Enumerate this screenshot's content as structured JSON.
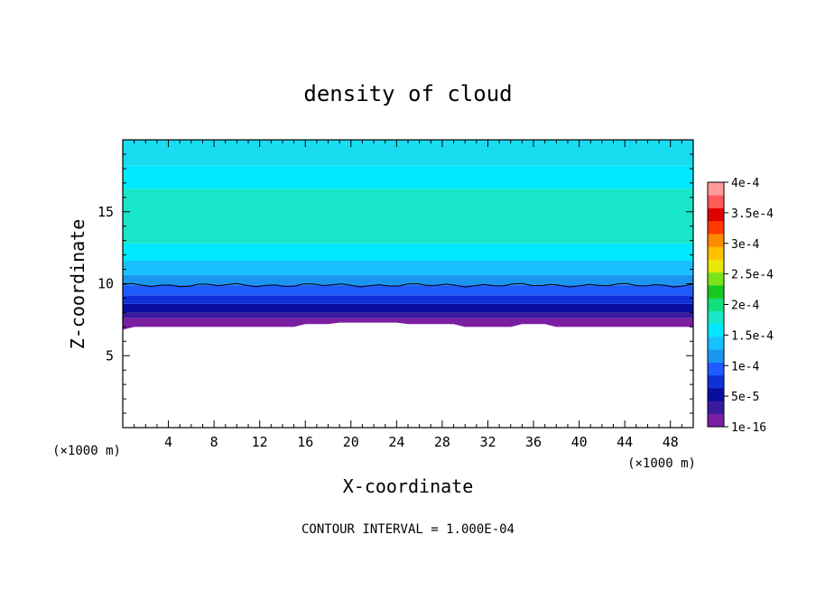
{
  "chart_data": {
    "type": "heatmap",
    "title": "density of cloud",
    "xlabel": "X-coordinate",
    "ylabel": "Z-coordinate",
    "x_unit": "(×1000 m)",
    "x_ticks": [
      4,
      8,
      12,
      16,
      20,
      24,
      28,
      32,
      36,
      40,
      44,
      48
    ],
    "y_ticks": [
      5,
      10,
      15
    ],
    "xlim": [
      0,
      50
    ],
    "ylim": [
      0,
      20
    ],
    "footer": "CONTOUR INTERVAL = 1.000E-04",
    "colorbar": {
      "labels": [
        "1e-16",
        "5e-5",
        "1e-4",
        "1.5e-4",
        "2e-4",
        "2.5e-4",
        "3e-4",
        "3.5e-4",
        "4e-4"
      ],
      "colors": [
        "#7b1fa2",
        "#3a1b9e",
        "#0a0ea0",
        "#1030d8",
        "#1f5cff",
        "#1b96f0",
        "#19c0ff",
        "#00e8ff",
        "#19e6c8",
        "#12e07a",
        "#17c81e",
        "#7ae21a",
        "#e8e800",
        "#ffc000",
        "#ff8a00",
        "#ff3a00",
        "#e00000",
        "#ff5a5a",
        "#ff9a9a"
      ]
    },
    "contour_line_z": 9.9,
    "cloud_base_z": [
      6.8,
      7.0,
      7.0,
      7.0,
      7.0,
      7.0,
      7.0,
      7.0,
      7.0,
      7.0,
      7.0,
      7.0,
      7.0,
      7.0,
      7.0,
      7.0,
      7.2,
      7.2,
      7.2,
      7.3,
      7.3,
      7.3,
      7.3,
      7.3,
      7.3,
      7.2,
      7.2,
      7.2,
      7.2,
      7.2,
      7.0,
      7.0,
      7.0,
      7.0,
      7.0,
      7.2,
      7.2,
      7.2,
      7.0,
      7.0,
      7.0,
      7.0,
      7.0,
      7.0,
      7.0,
      7.0,
      7.0,
      7.0,
      7.0,
      7.0,
      7.0
    ],
    "vertical_profile": [
      {
        "z0": 6.8,
        "z1": 7.6,
        "color": "#7b1fa2"
      },
      {
        "z0": 7.6,
        "z1": 8.0,
        "color": "#3a1b9e"
      },
      {
        "z0": 8.0,
        "z1": 8.6,
        "color": "#0a0ea0"
      },
      {
        "z0": 8.6,
        "z1": 9.2,
        "color": "#1030d8"
      },
      {
        "z0": 9.2,
        "z1": 9.9,
        "color": "#1f5cff"
      },
      {
        "z0": 9.9,
        "z1": 10.6,
        "color": "#1b96f0"
      },
      {
        "z0": 10.6,
        "z1": 11.6,
        "color": "#19c0ff"
      },
      {
        "z0": 11.6,
        "z1": 12.8,
        "color": "#00e8ff"
      },
      {
        "z0": 12.8,
        "z1": 16.6,
        "color": "#19e6c8"
      },
      {
        "z0": 16.6,
        "z1": 18.2,
        "color": "#00e8ff"
      },
      {
        "z0": 18.2,
        "z1": 20.0,
        "color": "#19dcf0"
      }
    ]
  }
}
